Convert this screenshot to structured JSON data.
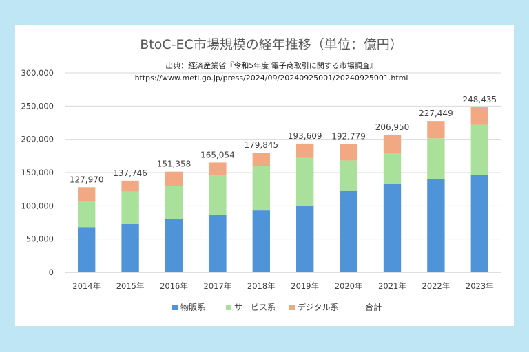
{
  "chart_data": {
    "type": "bar",
    "stacked": true,
    "title": "BtoC-EC市場規模の経年推移（単位：億円）",
    "source_line1": "出典：経済産業省『令和5年度 電子商取引に関する市場調査』",
    "source_line2": "https://www.meti.go.jp/press/2024/09/20240925001/20240925001.html",
    "categories": [
      "2014年",
      "2015年",
      "2016年",
      "2017年",
      "2018年",
      "2019年",
      "2020年",
      "2021年",
      "2022年",
      "2023年"
    ],
    "series": [
      {
        "name": "物販系",
        "color": "#4f94d9",
        "values": [
          68043,
          72398,
          80043,
          86008,
          92992,
          100515,
          122333,
          132865,
          139997,
          146760
        ]
      },
      {
        "name": "サービス系",
        "color": "#a9e09a",
        "values": [
          38749,
          49014,
          49689,
          59568,
          66471,
          71672,
          45832,
          46424,
          61477,
          75169
        ]
      },
      {
        "name": "デジタル系",
        "color": "#f2a983",
        "values": [
          21178,
          16334,
          21626,
          19478,
          20382,
          21422,
          24614,
          27661,
          25975,
          26506
        ]
      }
    ],
    "totals": [
      127970,
      137746,
      151358,
      165054,
      179845,
      193609,
      192779,
      206950,
      227449,
      248435
    ],
    "total_labels": [
      "127,970",
      "137,746",
      "151,358",
      "165,054",
      "179,845",
      "193,609",
      "192,779",
      "206,950",
      "227,449",
      "248,435"
    ],
    "totals_name": "合計",
    "ylim": [
      0,
      300000
    ],
    "yticks": [
      0,
      50000,
      100000,
      150000,
      200000,
      250000,
      300000
    ],
    "ytick_labels": [
      "0",
      "50,000",
      "100,000",
      "150,000",
      "200,000",
      "250,000",
      "300,000"
    ],
    "grid": true,
    "legend_position": "bottom"
  }
}
